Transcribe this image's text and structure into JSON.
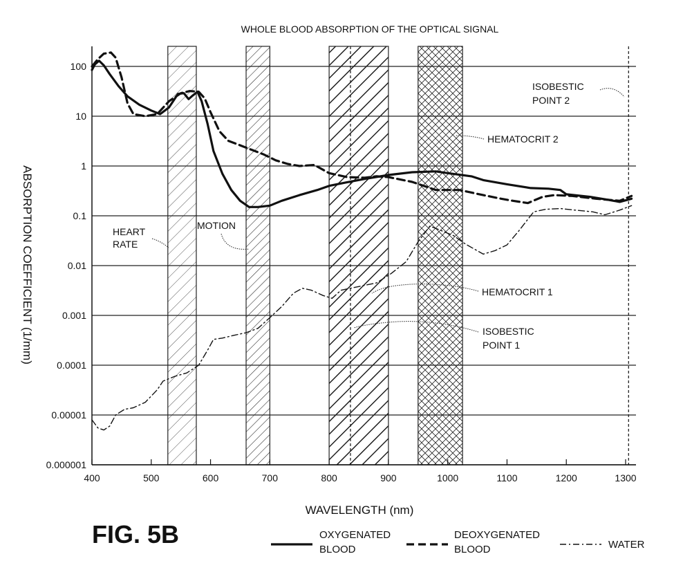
{
  "chart_data": {
    "type": "line",
    "title": "WHOLE BLOOD ABSORPTION OF THE OPTICAL SIGNAL",
    "xlabel": "WAVELENGTH (nm)",
    "ylabel": "ABSORPTION COEFFICIENT (1/mm)",
    "xlim": [
      400,
      1320
    ],
    "ylim": [
      1e-06,
      250
    ],
    "y_scale": "log",
    "grid": "horizontal",
    "x_ticks": [
      "400",
      "500",
      "600",
      "700",
      "800",
      "900",
      "1000",
      "1100",
      "1200",
      "1300"
    ],
    "x_tick_values": [
      400,
      500,
      600,
      700,
      800,
      900,
      1000,
      1100,
      1200,
      1300
    ],
    "y_ticks": [
      "100",
      "10",
      "1",
      "0.1",
      "0.01",
      "0.001",
      "0.0001",
      "0.00001",
      "0.000001"
    ],
    "y_tick_values": [
      100,
      10,
      1,
      0.1,
      0.01,
      0.001,
      0.0001,
      1e-05,
      1e-06
    ],
    "series": [
      {
        "name": "OXYGENATED BLOOD",
        "style": "solid",
        "points": [
          [
            400,
            85
          ],
          [
            405,
            110
          ],
          [
            412,
            130
          ],
          [
            420,
            105
          ],
          [
            430,
            70
          ],
          [
            445,
            40
          ],
          [
            460,
            25
          ],
          [
            480,
            17
          ],
          [
            500,
            13
          ],
          [
            515,
            11
          ],
          [
            530,
            15
          ],
          [
            545,
            28
          ],
          [
            555,
            29
          ],
          [
            563,
            22
          ],
          [
            570,
            26
          ],
          [
            578,
            31
          ],
          [
            585,
            20
          ],
          [
            595,
            7
          ],
          [
            605,
            2
          ],
          [
            620,
            0.7
          ],
          [
            635,
            0.33
          ],
          [
            650,
            0.2
          ],
          [
            665,
            0.15
          ],
          [
            680,
            0.15
          ],
          [
            700,
            0.16
          ],
          [
            720,
            0.2
          ],
          [
            750,
            0.26
          ],
          [
            780,
            0.33
          ],
          [
            800,
            0.4
          ],
          [
            830,
            0.47
          ],
          [
            860,
            0.55
          ],
          [
            900,
            0.66
          ],
          [
            940,
            0.75
          ],
          [
            980,
            0.78
          ],
          [
            1000,
            0.72
          ],
          [
            1040,
            0.62
          ],
          [
            1060,
            0.52
          ],
          [
            1100,
            0.43
          ],
          [
            1140,
            0.36
          ],
          [
            1170,
            0.35
          ],
          [
            1190,
            0.33
          ],
          [
            1200,
            0.27
          ],
          [
            1240,
            0.24
          ],
          [
            1270,
            0.21
          ],
          [
            1290,
            0.19
          ],
          [
            1310,
            0.22
          ]
        ]
      },
      {
        "name": "DEOXYGENATED BLOOD",
        "style": "dashed",
        "points": [
          [
            400,
            100
          ],
          [
            410,
            140
          ],
          [
            420,
            180
          ],
          [
            432,
            190
          ],
          [
            440,
            150
          ],
          [
            450,
            60
          ],
          [
            460,
            18
          ],
          [
            470,
            11
          ],
          [
            490,
            10
          ],
          [
            510,
            11
          ],
          [
            530,
            20
          ],
          [
            550,
            29
          ],
          [
            565,
            32
          ],
          [
            580,
            31
          ],
          [
            590,
            23
          ],
          [
            600,
            12
          ],
          [
            615,
            5
          ],
          [
            630,
            3.2
          ],
          [
            650,
            2.6
          ],
          [
            670,
            2.1
          ],
          [
            690,
            1.7
          ],
          [
            710,
            1.3
          ],
          [
            730,
            1.1
          ],
          [
            750,
            1.0
          ],
          [
            775,
            1.05
          ],
          [
            800,
            0.72
          ],
          [
            830,
            0.6
          ],
          [
            860,
            0.58
          ],
          [
            880,
            0.62
          ],
          [
            900,
            0.6
          ],
          [
            940,
            0.48
          ],
          [
            980,
            0.33
          ],
          [
            1020,
            0.33
          ],
          [
            1060,
            0.26
          ],
          [
            1090,
            0.22
          ],
          [
            1110,
            0.2
          ],
          [
            1135,
            0.18
          ],
          [
            1160,
            0.24
          ],
          [
            1180,
            0.26
          ],
          [
            1210,
            0.25
          ],
          [
            1250,
            0.22
          ],
          [
            1290,
            0.2
          ],
          [
            1310,
            0.25
          ]
        ]
      },
      {
        "name": "WATER",
        "style": "dash-dot",
        "points": [
          [
            400,
            8e-06
          ],
          [
            410,
            5.5e-06
          ],
          [
            420,
            5e-06
          ],
          [
            430,
            6e-06
          ],
          [
            440,
            1e-05
          ],
          [
            455,
            1.3e-05
          ],
          [
            470,
            1.4e-05
          ],
          [
            490,
            1.8e-05
          ],
          [
            510,
            3.2e-05
          ],
          [
            520,
            4.8e-05
          ],
          [
            540,
            6e-05
          ],
          [
            560,
            7e-05
          ],
          [
            580,
            0.0001
          ],
          [
            595,
            0.0002
          ],
          [
            605,
            0.00033
          ],
          [
            620,
            0.00035
          ],
          [
            640,
            0.0004
          ],
          [
            660,
            0.00045
          ],
          [
            680,
            0.00055
          ],
          [
            700,
            0.0009
          ],
          [
            720,
            0.0015
          ],
          [
            740,
            0.0028
          ],
          [
            755,
            0.0035
          ],
          [
            770,
            0.0032
          ],
          [
            790,
            0.0025
          ],
          [
            805,
            0.0022
          ],
          [
            820,
            0.0032
          ],
          [
            850,
            0.0038
          ],
          [
            880,
            0.0045
          ],
          [
            905,
            0.007
          ],
          [
            930,
            0.012
          ],
          [
            950,
            0.03
          ],
          [
            970,
            0.062
          ],
          [
            990,
            0.05
          ],
          [
            1010,
            0.04
          ],
          [
            1030,
            0.027
          ],
          [
            1060,
            0.017
          ],
          [
            1080,
            0.02
          ],
          [
            1100,
            0.026
          ],
          [
            1120,
            0.05
          ],
          [
            1145,
            0.12
          ],
          [
            1165,
            0.135
          ],
          [
            1190,
            0.14
          ],
          [
            1215,
            0.13
          ],
          [
            1245,
            0.12
          ],
          [
            1265,
            0.105
          ],
          [
            1290,
            0.13
          ],
          [
            1310,
            0.16
          ]
        ]
      }
    ],
    "bands": [
      {
        "name": "HEART RATE",
        "x": [
          528,
          576
        ],
        "pattern": "light-diagonal"
      },
      {
        "name": "MOTION",
        "x": [
          660,
          700
        ],
        "pattern": "dense-diagonal"
      },
      {
        "name": "HEMATOCRIT 1",
        "x": [
          800,
          900
        ],
        "pattern": "bold-diagonal"
      },
      {
        "name": "HEMATOCRIT 2",
        "x": [
          950,
          1025
        ],
        "pattern": "crosshatch"
      }
    ],
    "vlines": [
      {
        "name": "ISOBESTIC POINT 1",
        "x": 836
      },
      {
        "name": "ISOBESTIC POINT 2",
        "x": 1305
      }
    ],
    "annotations": [
      {
        "key": "heart_rate",
        "lines": [
          "HEART",
          "RATE"
        ]
      },
      {
        "key": "motion",
        "lines": [
          "MOTION"
        ]
      },
      {
        "key": "hematocrit1",
        "lines": [
          "HEMATOCRIT 1"
        ]
      },
      {
        "key": "hematocrit2",
        "lines": [
          "HEMATOCRIT 2"
        ]
      },
      {
        "key": "isobestic1",
        "lines": [
          "ISOBESTIC",
          "POINT 1"
        ]
      },
      {
        "key": "isobestic2",
        "lines": [
          "ISOBESTIC",
          "POINT 2"
        ]
      }
    ]
  },
  "figure_label": "FIG. 5B",
  "legend": [
    {
      "lines": [
        "OXYGENATED",
        "BLOOD"
      ],
      "style": "solid"
    },
    {
      "lines": [
        "DEOXYGENATED",
        "BLOOD"
      ],
      "style": "dashed"
    },
    {
      "lines": [
        "WATER"
      ],
      "style": "dash-dot"
    }
  ]
}
